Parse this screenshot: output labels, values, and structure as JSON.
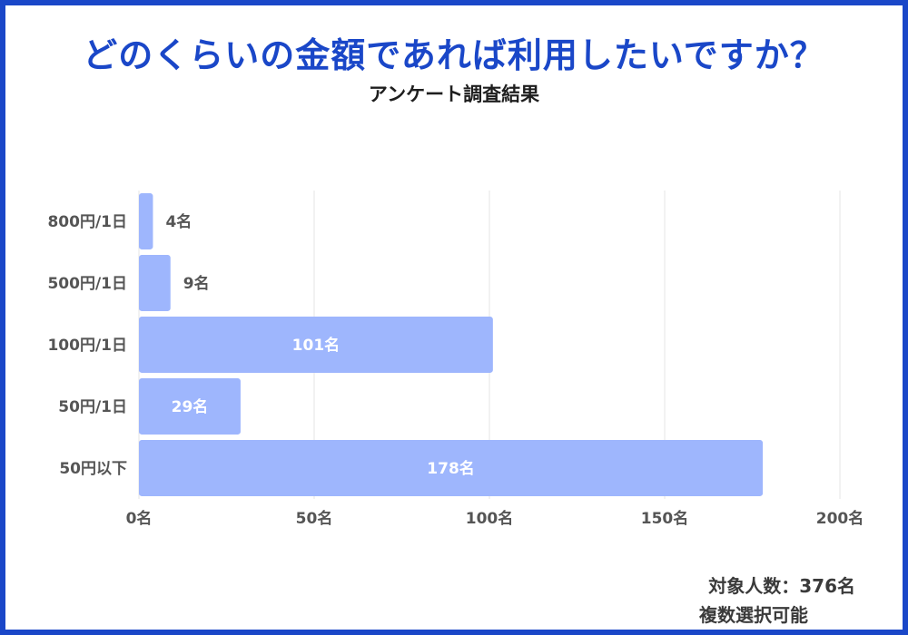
{
  "title": "どのくらいの金額であれば利用したいですか？",
  "subtitle": "アンケート調査結果",
  "colors": {
    "frame": "#1a47c8",
    "title": "#1a47c8",
    "bar": "#9eb6fd",
    "grid": "#e5e5e5",
    "label": "#555555",
    "inner_label": "#ffffff"
  },
  "chart_data": {
    "type": "bar",
    "orientation": "horizontal",
    "categories": [
      "800円/1日",
      "500円/1日",
      "100円/1日",
      "50円/1日",
      "50円以下"
    ],
    "values": [
      4,
      9,
      101,
      29,
      178
    ],
    "value_labels": [
      "4名",
      "9名",
      "101名",
      "29名",
      "178名"
    ],
    "xlim": [
      0,
      200
    ],
    "xticks": [
      0,
      50,
      100,
      150,
      200
    ],
    "xtick_labels": [
      "0名",
      "50名",
      "100名",
      "150名",
      "200名"
    ],
    "grid": true,
    "legend": "none"
  },
  "notes": {
    "respondents": "対象人数：376名",
    "multiple": "複数選択可能"
  }
}
